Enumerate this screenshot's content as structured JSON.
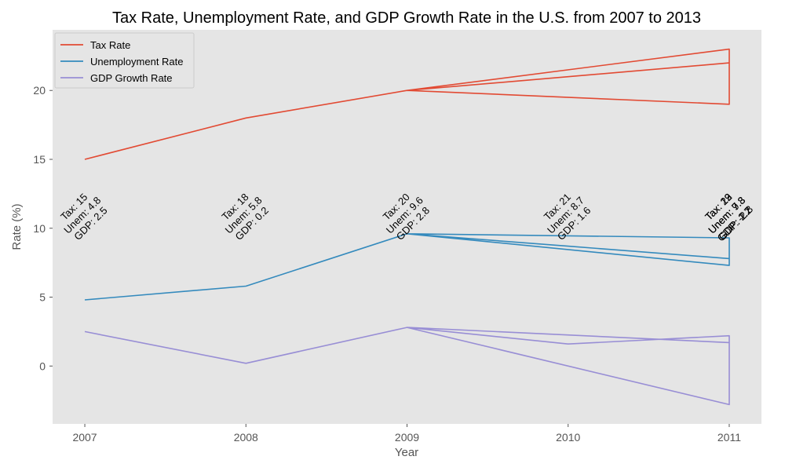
{
  "chart_data": {
    "type": "line",
    "title": "Tax Rate, Unemployment Rate, and GDP Growth Rate in the U.S. from 2007 to 2013",
    "xlabel": "Year",
    "ylabel": "Rate (%)",
    "xlim": [
      2006.8,
      2011.2
    ],
    "ylim": [
      -4.2,
      24.4
    ],
    "x_ticks": [
      2007,
      2008,
      2009,
      2010,
      2011
    ],
    "y_ticks": [
      0,
      5,
      10,
      15,
      20
    ],
    "grid": false,
    "background": "#e5e5e5",
    "legend_position": "top-left",
    "x": [
      2007,
      2008,
      2009,
      2010,
      2011,
      2011,
      2009,
      2011,
      2011
    ],
    "series": [
      {
        "name": "Tax Rate",
        "color": "#e24a33",
        "values": [
          15,
          18,
          20,
          21,
          22,
          23,
          20,
          19,
          22
        ]
      },
      {
        "name": "Unemployment Rate",
        "color": "#348abd",
        "values": [
          4.8,
          5.8,
          9.6,
          8.7,
          7.8,
          7.3,
          9.6,
          9.3,
          7.8
        ]
      },
      {
        "name": "GDP Growth Rate",
        "color": "#988ed5",
        "values": [
          2.5,
          0.2,
          2.8,
          1.6,
          2.2,
          1.7,
          2.8,
          -2.8,
          2.2
        ]
      }
    ],
    "annotations": [
      {
        "x": 2007,
        "lines": [
          "Tax: 15",
          "Unem: 4.8",
          "GDP: 2.5"
        ]
      },
      {
        "x": 2008,
        "lines": [
          "Tax: 18",
          "Unem: 5.8",
          "GDP: 0.2"
        ]
      },
      {
        "x": 2009,
        "lines": [
          "Tax: 20",
          "Unem: 9.6",
          "GDP: 2.8"
        ]
      },
      {
        "x": 2010,
        "lines": [
          "Tax: 21",
          "Unem: 8.7",
          "GDP: 1.6"
        ]
      },
      {
        "x": 2011,
        "lines": [
          "Tax: 22",
          "Unem: 7.8",
          "GDP: 2.2"
        ]
      },
      {
        "x": 2011,
        "lines": [
          "Tax: 23",
          "Unem: 7.3",
          "GDP: 1.7"
        ]
      },
      {
        "x": 2011,
        "lines": [
          "Tax: 19",
          "Unem: 9.3",
          "GDP: -2.8"
        ]
      }
    ]
  }
}
